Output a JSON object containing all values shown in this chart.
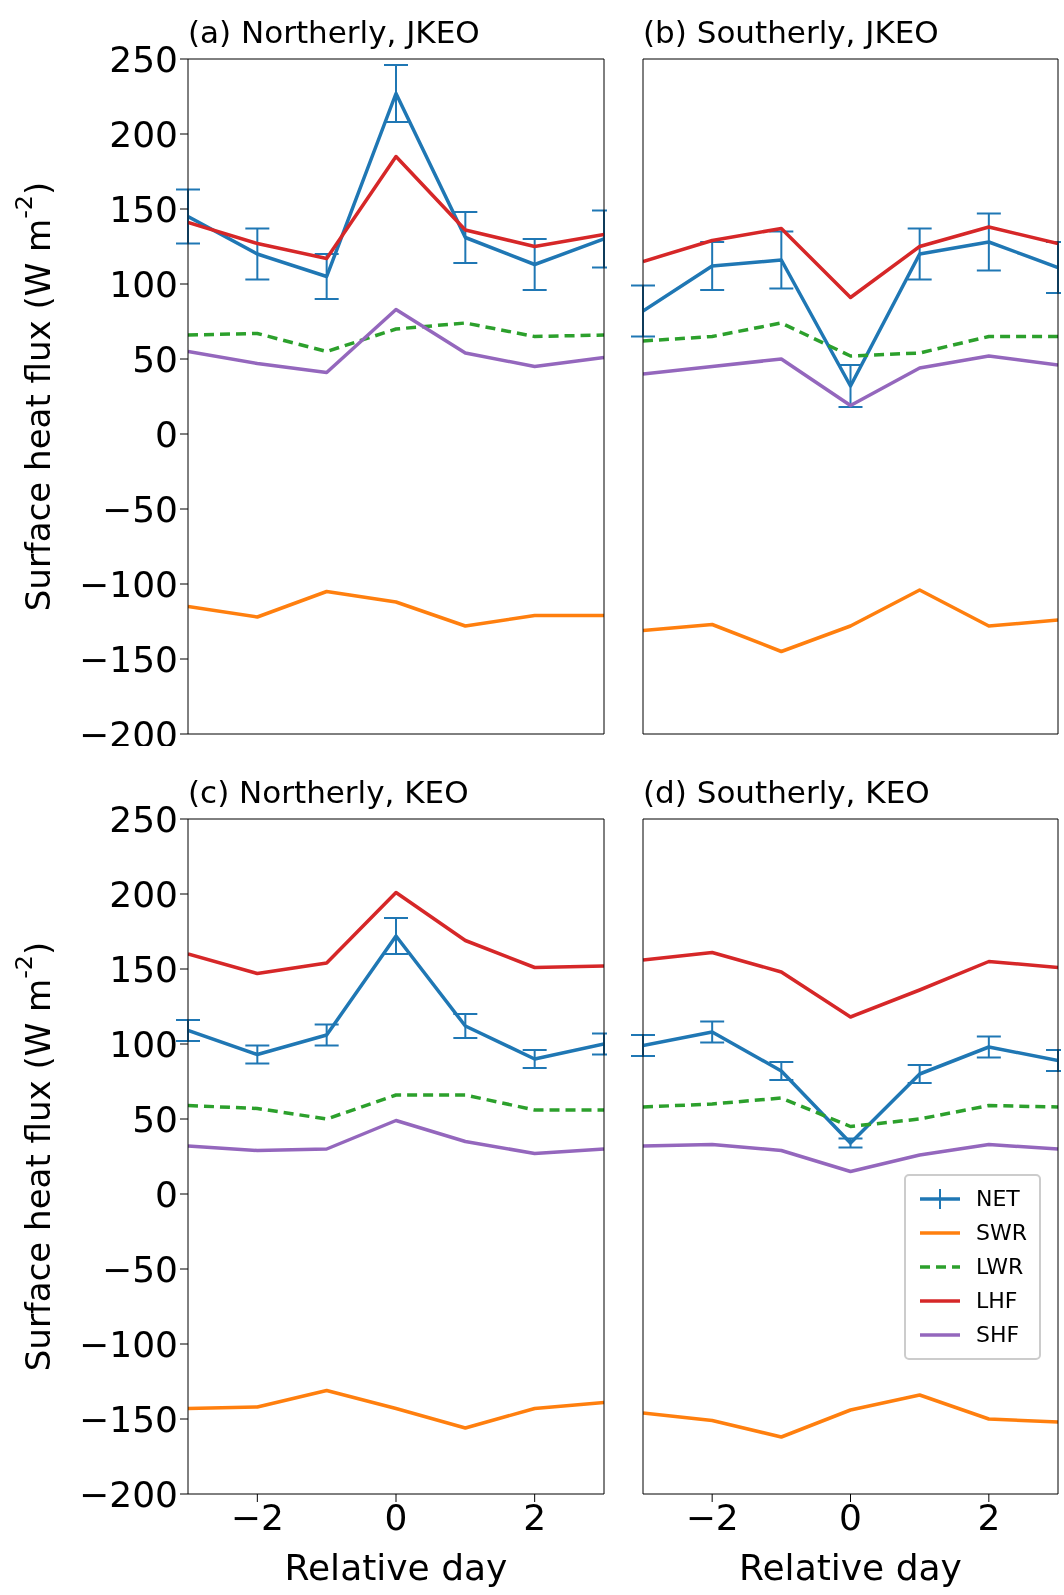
{
  "chart_data": [
    {
      "type": "line",
      "title": "(a) Northerly, JKEO",
      "ylabel": "Surface heat flux (W m$^{-2}$)",
      "x": [
        -3,
        -2,
        -1,
        0,
        1,
        2,
        3
      ],
      "xlim": [
        -3,
        3
      ],
      "xticks": [
        -2,
        0,
        2
      ],
      "ylim": [
        -200,
        250
      ],
      "yticks": [
        -200,
        -150,
        -100,
        -50,
        0,
        50,
        100,
        150,
        200,
        250
      ],
      "grid": false,
      "legend": false,
      "tick_labels": "y",
      "series": [
        {
          "color": "#1f77b4",
          "line_style": "solid",
          "values": [
            145,
            120,
            105,
            227,
            131,
            113,
            130
          ],
          "errors": [
            18,
            17,
            15,
            19,
            17,
            17,
            19
          ]
        },
        {
          "color": "#ff7f0e",
          "line_style": "solid",
          "values": [
            -115,
            -122,
            -105,
            -112,
            -128,
            -121,
            -121
          ]
        },
        {
          "color": "#2ca02c",
          "line_style": "dashed",
          "values": [
            66,
            67,
            55,
            70,
            74,
            65,
            66
          ]
        },
        {
          "color": "#d62728",
          "line_style": "solid",
          "values": [
            141,
            127,
            117,
            185,
            136,
            125,
            133
          ]
        },
        {
          "color": "#9467bd",
          "line_style": "solid",
          "values": [
            55,
            47,
            41,
            83,
            54,
            45,
            51
          ]
        }
      ]
    },
    {
      "type": "line",
      "title": "(b) Southerly, JKEO",
      "x": [
        -3,
        -2,
        -1,
        0,
        1,
        2,
        3
      ],
      "xlim": [
        -3,
        3
      ],
      "xticks": [
        -2,
        0,
        2
      ],
      "ylim": [
        -200,
        250
      ],
      "yticks": [
        -200,
        -150,
        -100,
        -50,
        0,
        50,
        100,
        150,
        200,
        250
      ],
      "grid": false,
      "legend": false,
      "tick_labels": false,
      "series": [
        {
          "color": "#1f77b4",
          "line_style": "solid",
          "values": [
            82,
            112,
            116,
            32,
            120,
            128,
            111
          ],
          "errors": [
            17,
            16,
            19,
            14,
            17,
            19,
            17
          ]
        },
        {
          "color": "#ff7f0e",
          "line_style": "solid",
          "values": [
            -131,
            -127,
            -145,
            -128,
            -104,
            -128,
            -124
          ]
        },
        {
          "color": "#2ca02c",
          "line_style": "dashed",
          "values": [
            62,
            65,
            74,
            52,
            54,
            65,
            65
          ]
        },
        {
          "color": "#d62728",
          "line_style": "solid",
          "values": [
            115,
            129,
            137,
            91,
            125,
            138,
            127
          ]
        },
        {
          "color": "#9467bd",
          "line_style": "solid",
          "values": [
            40,
            45,
            50,
            19,
            44,
            52,
            46
          ]
        }
      ]
    },
    {
      "type": "line",
      "title": "(c) Northerly, KEO",
      "xlabel": "Relative day",
      "ylabel": "Surface heat flux (W m$^{-2}$)",
      "x": [
        -3,
        -2,
        -1,
        0,
        1,
        2,
        3
      ],
      "xlim": [
        -3,
        3
      ],
      "xticks": [
        -2,
        0,
        2
      ],
      "ylim": [
        -200,
        250
      ],
      "yticks": [
        -200,
        -150,
        -100,
        -50,
        0,
        50,
        100,
        150,
        200,
        250
      ],
      "grid": false,
      "legend": false,
      "series": [
        {
          "color": "#1f77b4",
          "line_style": "solid",
          "values": [
            109,
            93,
            106,
            172,
            112,
            90,
            100
          ],
          "errors": [
            7,
            6,
            7,
            12,
            8,
            6,
            7
          ]
        },
        {
          "color": "#ff7f0e",
          "line_style": "solid",
          "values": [
            -143,
            -142,
            -131,
            -143,
            -156,
            -143,
            -139
          ]
        },
        {
          "color": "#2ca02c",
          "line_style": "dashed",
          "values": [
            59,
            57,
            50,
            66,
            66,
            56,
            56
          ]
        },
        {
          "color": "#d62728",
          "line_style": "solid",
          "values": [
            160,
            147,
            154,
            201,
            169,
            151,
            152
          ]
        },
        {
          "color": "#9467bd",
          "line_style": "solid",
          "values": [
            32,
            29,
            30,
            49,
            35,
            27,
            30
          ]
        }
      ]
    },
    {
      "type": "line",
      "title": "(d) Southerly, KEO",
      "xlabel": "Relative day",
      "x": [
        -3,
        -2,
        -1,
        0,
        1,
        2,
        3
      ],
      "xlim": [
        -3,
        3
      ],
      "xticks": [
        -2,
        0,
        2
      ],
      "ylim": [
        -200,
        250
      ],
      "yticks": [
        -200,
        -150,
        -100,
        -50,
        0,
        50,
        100,
        150,
        200,
        250
      ],
      "grid": false,
      "legend": "bottom right",
      "tick_labels": "x",
      "series": [
        {
          "name": "NET",
          "color": "#1f77b4",
          "line_style": "solid",
          "values": [
            99,
            108,
            82,
            34,
            80,
            98,
            89
          ],
          "errors": [
            7,
            7,
            6,
            3,
            6,
            7,
            7
          ]
        },
        {
          "name": "SWR",
          "color": "#ff7f0e",
          "line_style": "solid",
          "values": [
            -146,
            -151,
            -162,
            -144,
            -134,
            -150,
            -152
          ]
        },
        {
          "name": "LWR",
          "color": "#2ca02c",
          "line_style": "dashed",
          "values": [
            58,
            60,
            64,
            45,
            50,
            59,
            58
          ]
        },
        {
          "name": "LHF",
          "color": "#d62728",
          "line_style": "solid",
          "values": [
            156,
            161,
            148,
            118,
            136,
            155,
            151
          ]
        },
        {
          "name": "SHF",
          "color": "#9467bd",
          "line_style": "solid",
          "values": [
            32,
            33,
            29,
            15,
            26,
            33,
            30
          ]
        }
      ]
    }
  ]
}
